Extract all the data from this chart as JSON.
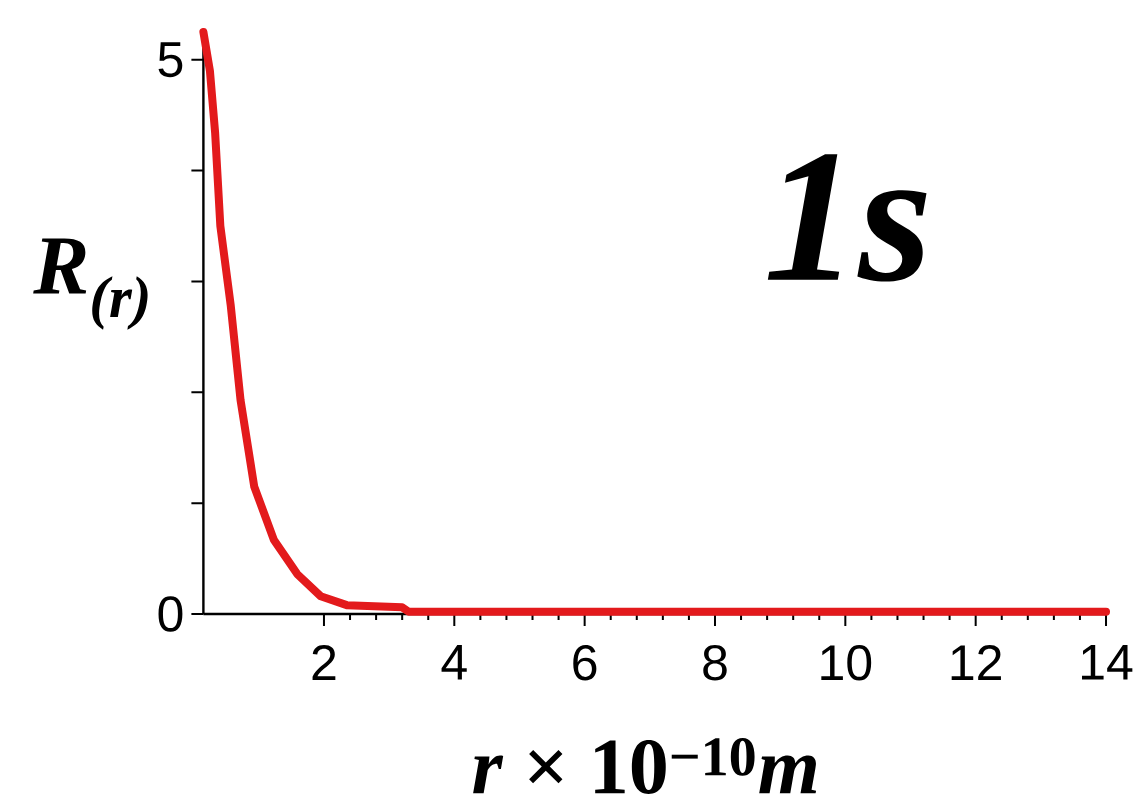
{
  "chart_data": {
    "type": "line",
    "title": "1s",
    "xlabel": "*r* × 10$^{−10}$*m*",
    "ylabel": "R$_{(r)}$",
    "x": [
      0.15,
      0.25,
      0.33,
      0.41,
      0.57,
      0.72,
      0.93,
      1.23,
      1.59,
      1.95,
      2.35,
      3.2,
      3.3,
      14
    ],
    "values": [
      5.25,
      4.9,
      4.34,
      3.5,
      2.78,
      1.93,
      1.15,
      0.67,
      0.36,
      0.16,
      0.08,
      0.06,
      0.02,
      0.02
    ],
    "color": "#e31a1c",
    "line_style": "solid",
    "xlim": [
      0.15,
      14
    ],
    "xticks": [
      2,
      4,
      6,
      8,
      10,
      12,
      14
    ],
    "ylim": [
      0,
      5.25
    ],
    "yticks": [
      0,
      {
        "value": 1,
        "label": null
      },
      {
        "value": 2,
        "label": null
      },
      {
        "value": 3,
        "label": null
      },
      {
        "value": 4,
        "label": null
      },
      5
    ]
  }
}
